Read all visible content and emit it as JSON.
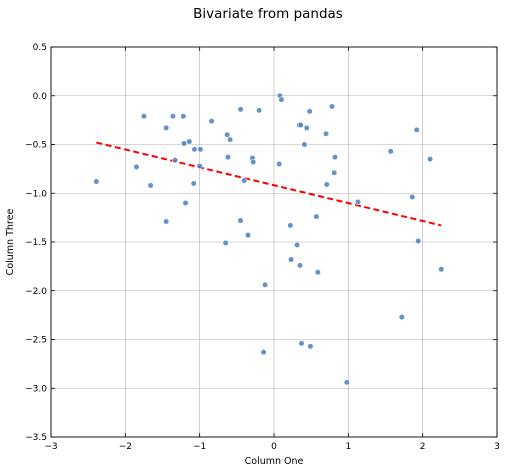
{
  "chart_data": {
    "type": "scatter",
    "title": "Bivariate from pandas",
    "xlabel": "Column One",
    "ylabel": "Column Three",
    "xlim": [
      -3,
      3
    ],
    "ylim": [
      -3.5,
      0.5
    ],
    "xticks": [
      -3,
      -2,
      -1,
      0,
      1,
      2,
      3
    ],
    "xtick_labels": [
      "−3",
      "−2",
      "−1",
      "0",
      "1",
      "2",
      "3"
    ],
    "yticks": [
      0.5,
      0.0,
      -0.5,
      -1.0,
      -1.5,
      -2.0,
      -2.5,
      -3.0,
      -3.5
    ],
    "ytick_labels": [
      "0.5",
      "0.0",
      "−0.5",
      "−1.0",
      "−1.5",
      "−2.0",
      "−2.5",
      "−3.0",
      "−3.5"
    ],
    "grid": true,
    "point_color": "#4C7FC0",
    "fit_color": "#FF0000",
    "points": [
      [
        -2.39,
        -0.88
      ],
      [
        -1.85,
        -0.73
      ],
      [
        -1.75,
        -0.21
      ],
      [
        -1.66,
        -0.92
      ],
      [
        -1.45,
        -0.33
      ],
      [
        -1.45,
        -1.29
      ],
      [
        -1.36,
        -0.21
      ],
      [
        -1.33,
        -0.66
      ],
      [
        -1.22,
        -0.21
      ],
      [
        -1.21,
        -0.49
      ],
      [
        -1.19,
        -1.1
      ],
      [
        -1.14,
        -0.47
      ],
      [
        -1.08,
        -0.9
      ],
      [
        -1.07,
        -0.55
      ],
      [
        -1.0,
        -0.72
      ],
      [
        -0.99,
        -0.55
      ],
      [
        -0.84,
        -0.26
      ],
      [
        -0.65,
        -1.51
      ],
      [
        -0.63,
        -0.4
      ],
      [
        -0.62,
        -0.63
      ],
      [
        -0.59,
        -0.45
      ],
      [
        -0.45,
        -0.14
      ],
      [
        -0.45,
        -1.28
      ],
      [
        -0.4,
        -0.87
      ],
      [
        -0.35,
        -1.43
      ],
      [
        -0.29,
        -0.64
      ],
      [
        -0.28,
        -0.68
      ],
      [
        -0.2,
        -0.15
      ],
      [
        -0.14,
        -2.63
      ],
      [
        -0.12,
        -1.94
      ],
      [
        0.07,
        -0.7
      ],
      [
        0.08,
        0.0
      ],
      [
        0.1,
        -0.04
      ],
      [
        0.22,
        -1.33
      ],
      [
        0.23,
        -1.68
      ],
      [
        0.31,
        -1.53
      ],
      [
        0.34,
        -0.3
      ],
      [
        0.35,
        -1.74
      ],
      [
        0.36,
        -0.3
      ],
      [
        0.37,
        -2.54
      ],
      [
        0.41,
        -0.5
      ],
      [
        0.44,
        -0.33
      ],
      [
        0.48,
        -0.16
      ],
      [
        0.49,
        -2.57
      ],
      [
        0.57,
        -1.24
      ],
      [
        0.59,
        -1.81
      ],
      [
        0.7,
        -0.39
      ],
      [
        0.71,
        -0.91
      ],
      [
        0.78,
        -0.11
      ],
      [
        0.81,
        -0.79
      ],
      [
        0.82,
        -0.63
      ],
      [
        0.98,
        -2.94
      ],
      [
        1.13,
        -1.09
      ],
      [
        1.57,
        -0.57
      ],
      [
        1.72,
        -2.27
      ],
      [
        1.86,
        -1.04
      ],
      [
        1.92,
        -0.35
      ],
      [
        1.94,
        -1.49
      ],
      [
        2.1,
        -0.65
      ],
      [
        2.25,
        -1.78
      ]
    ],
    "fit_line": {
      "x": [
        -2.39,
        2.25
      ],
      "y": [
        -0.48,
        -1.33
      ]
    }
  }
}
